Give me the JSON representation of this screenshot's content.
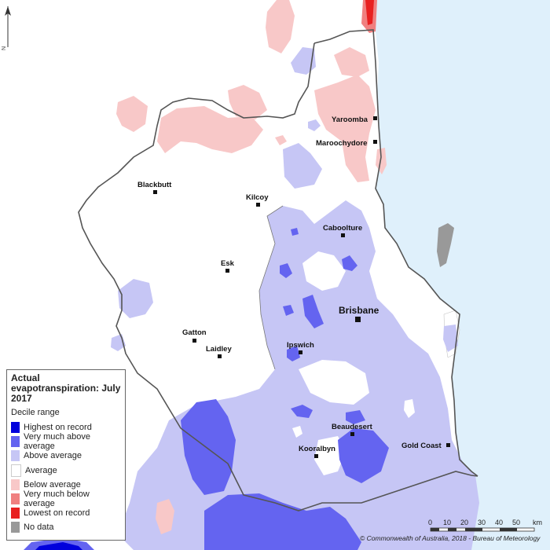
{
  "legend": {
    "title": "Actual evapotranspiration: July 2017",
    "subtitle": "Decile range",
    "items": [
      {
        "label": "Highest on record",
        "color": "#0000dc"
      },
      {
        "label": "Very much above average",
        "color": "#6464f0"
      },
      {
        "label": "Above average",
        "color": "#c6c6f5"
      },
      {
        "label": "Average",
        "color": "#ffffff"
      },
      {
        "label": "Below average",
        "color": "#f8c8c8"
      },
      {
        "label": "Very much below average",
        "color": "#f08080"
      },
      {
        "label": "Lowest on record",
        "color": "#e82020"
      },
      {
        "label": "No data",
        "color": "#999999"
      }
    ]
  },
  "places": [
    {
      "name": "Yaroomba"
    },
    {
      "name": "Maroochydore"
    },
    {
      "name": "Blackbutt"
    },
    {
      "name": "Kilcoy"
    },
    {
      "name": "Caboolture"
    },
    {
      "name": "Esk"
    },
    {
      "name": "Brisbane"
    },
    {
      "name": "Gatton"
    },
    {
      "name": "Laidley"
    },
    {
      "name": "Ipswich"
    },
    {
      "name": "Beaudesert"
    },
    {
      "name": "Kooralbyn"
    },
    {
      "name": "Gold Coast"
    }
  ],
  "scale": {
    "ticks": [
      "0",
      "10",
      "20",
      "30",
      "40",
      "50"
    ],
    "unit": "km"
  },
  "north_arrow": "N",
  "credit": "© Commonwealth of Australia, 2018 - Bureau of Meteorology",
  "colors": {
    "ocean": "#dff0fb",
    "region_border": "#555555"
  }
}
